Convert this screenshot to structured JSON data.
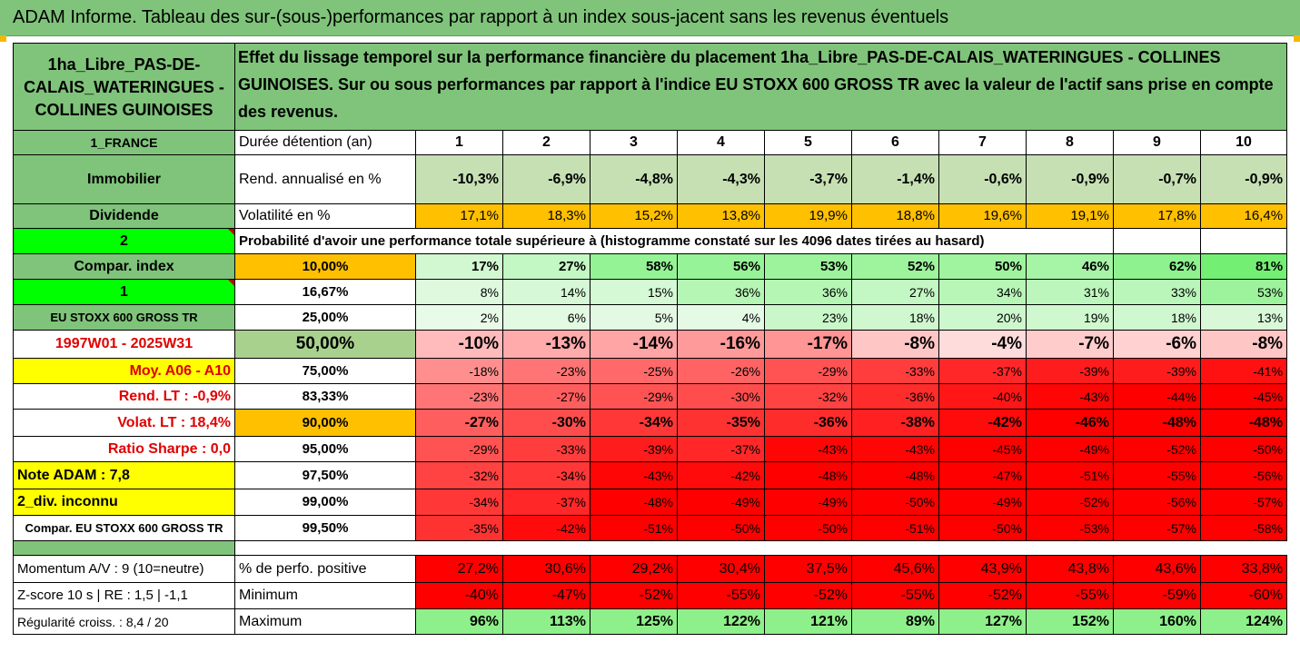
{
  "title": "ADAM Informe. Tableau des sur-(sous-)performances par rapport à un index sous-jacent sans les revenus éventuels",
  "header": {
    "fund_name": "1ha_Libre_PAS-DE-CALAIS_WATERINGUES - COLLINES GUINOISES",
    "description": "Effet du lissage temporel sur la performance financière du placement 1ha_Libre_PAS-DE-CALAIS_WATERINGUES - COLLINES GUINOISES. Sur ou sous performances par rapport à l'indice EU STOXX 600 GROSS TR avec la valeur de l'actif sans prise en compte des revenus."
  },
  "left_labels": {
    "country": "1_FRANCE",
    "asset_class": "Immobilier",
    "dividend": "Dividende",
    "code_2": "2",
    "compar_index": "Compar. index",
    "code_1": "1",
    "index_name": "EU STOXX 600 GROSS TR",
    "period": "1997W01 - 2025W31",
    "moy": "Moy. A06 - A10",
    "rend_lt": "Rend. LT :   -0,9%",
    "volat_lt": "Volat. LT :   18,4%",
    "sharpe": "Ratio Sharpe :   0,0",
    "note": "Note ADAM : 7,8",
    "div": "2_div. inconnu",
    "compar_full": "Compar. EU STOXX 600 GROSS TR",
    "momentum": "Momentum A/V : 9 (10=neutre)",
    "zscore": "Z-score 10 s  |  RE : 1,5  |  -1,1",
    "regularite": "Régularité croiss. : 8,4 / 20"
  },
  "rows": {
    "duree_label": "Durée détention (an)",
    "years": [
      "1",
      "2",
      "3",
      "4",
      "5",
      "6",
      "7",
      "8",
      "9",
      "10"
    ],
    "rend_label": "Rend. annualisé en %",
    "rend": [
      "-10,3%",
      "-6,9%",
      "-4,8%",
      "-4,3%",
      "-3,7%",
      "-1,4%",
      "-0,6%",
      "-0,9%",
      "-0,7%",
      "-0,9%"
    ],
    "vol_label": "Volatilité en %",
    "vol": [
      "17,1%",
      "18,3%",
      "15,2%",
      "13,8%",
      "19,9%",
      "18,8%",
      "19,6%",
      "19,1%",
      "17,8%",
      "16,4%"
    ],
    "prob_label": "Probabilité d'avoir une performance totale supérieure à (histogramme constaté sur les 4096 dates tirées au hasard)",
    "quantiles": [
      {
        "pct": "10,00%",
        "values": [
          "17%",
          "27%",
          "58%",
          "56%",
          "53%",
          "52%",
          "50%",
          "46%",
          "62%",
          "81%"
        ]
      },
      {
        "pct": "16,67%",
        "values": [
          "8%",
          "14%",
          "15%",
          "36%",
          "36%",
          "27%",
          "34%",
          "31%",
          "33%",
          "53%"
        ]
      },
      {
        "pct": "25,00%",
        "values": [
          "2%",
          "6%",
          "5%",
          "4%",
          "23%",
          "18%",
          "20%",
          "19%",
          "18%",
          "13%"
        ]
      },
      {
        "pct": "50,00%",
        "values": [
          "-10%",
          "-13%",
          "-14%",
          "-16%",
          "-17%",
          "-8%",
          "-4%",
          "-7%",
          "-6%",
          "-8%"
        ]
      },
      {
        "pct": "75,00%",
        "values": [
          "-18%",
          "-23%",
          "-25%",
          "-26%",
          "-29%",
          "-33%",
          "-37%",
          "-39%",
          "-39%",
          "-41%"
        ]
      },
      {
        "pct": "83,33%",
        "values": [
          "-23%",
          "-27%",
          "-29%",
          "-30%",
          "-32%",
          "-36%",
          "-40%",
          "-43%",
          "-44%",
          "-45%"
        ]
      },
      {
        "pct": "90,00%",
        "values": [
          "-27%",
          "-30%",
          "-34%",
          "-35%",
          "-36%",
          "-38%",
          "-42%",
          "-46%",
          "-48%",
          "-48%"
        ]
      },
      {
        "pct": "95,00%",
        "values": [
          "-29%",
          "-33%",
          "-39%",
          "-37%",
          "-43%",
          "-43%",
          "-45%",
          "-49%",
          "-52%",
          "-50%"
        ]
      },
      {
        "pct": "97,50%",
        "values": [
          "-32%",
          "-34%",
          "-43%",
          "-42%",
          "-48%",
          "-48%",
          "-47%",
          "-51%",
          "-55%",
          "-56%"
        ]
      },
      {
        "pct": "99,00%",
        "values": [
          "-34%",
          "-37%",
          "-48%",
          "-49%",
          "-49%",
          "-50%",
          "-49%",
          "-52%",
          "-56%",
          "-57%"
        ]
      },
      {
        "pct": "99,50%",
        "values": [
          "-35%",
          "-42%",
          "-51%",
          "-50%",
          "-50%",
          "-51%",
          "-50%",
          "-53%",
          "-57%",
          "-58%"
        ]
      }
    ],
    "pos_label": "% de perfo. positive",
    "pos": [
      "27,2%",
      "30,6%",
      "29,2%",
      "30,4%",
      "37,5%",
      "45,6%",
      "43,9%",
      "43,8%",
      "43,6%",
      "33,8%"
    ],
    "min_label": "Minimum",
    "min": [
      "-40%",
      "-47%",
      "-52%",
      "-55%",
      "-52%",
      "-55%",
      "-52%",
      "-55%",
      "-59%",
      "-60%"
    ],
    "max_label": "Maximum",
    "max": [
      "96%",
      "113%",
      "125%",
      "122%",
      "121%",
      "89%",
      "127%",
      "152%",
      "160%",
      "124%"
    ]
  },
  "colors": {
    "header_green": "#7fc47a",
    "orange": "#ffc000",
    "yellow": "#ffff00",
    "bright_green": "#00ff00",
    "red": "#ff0000"
  }
}
